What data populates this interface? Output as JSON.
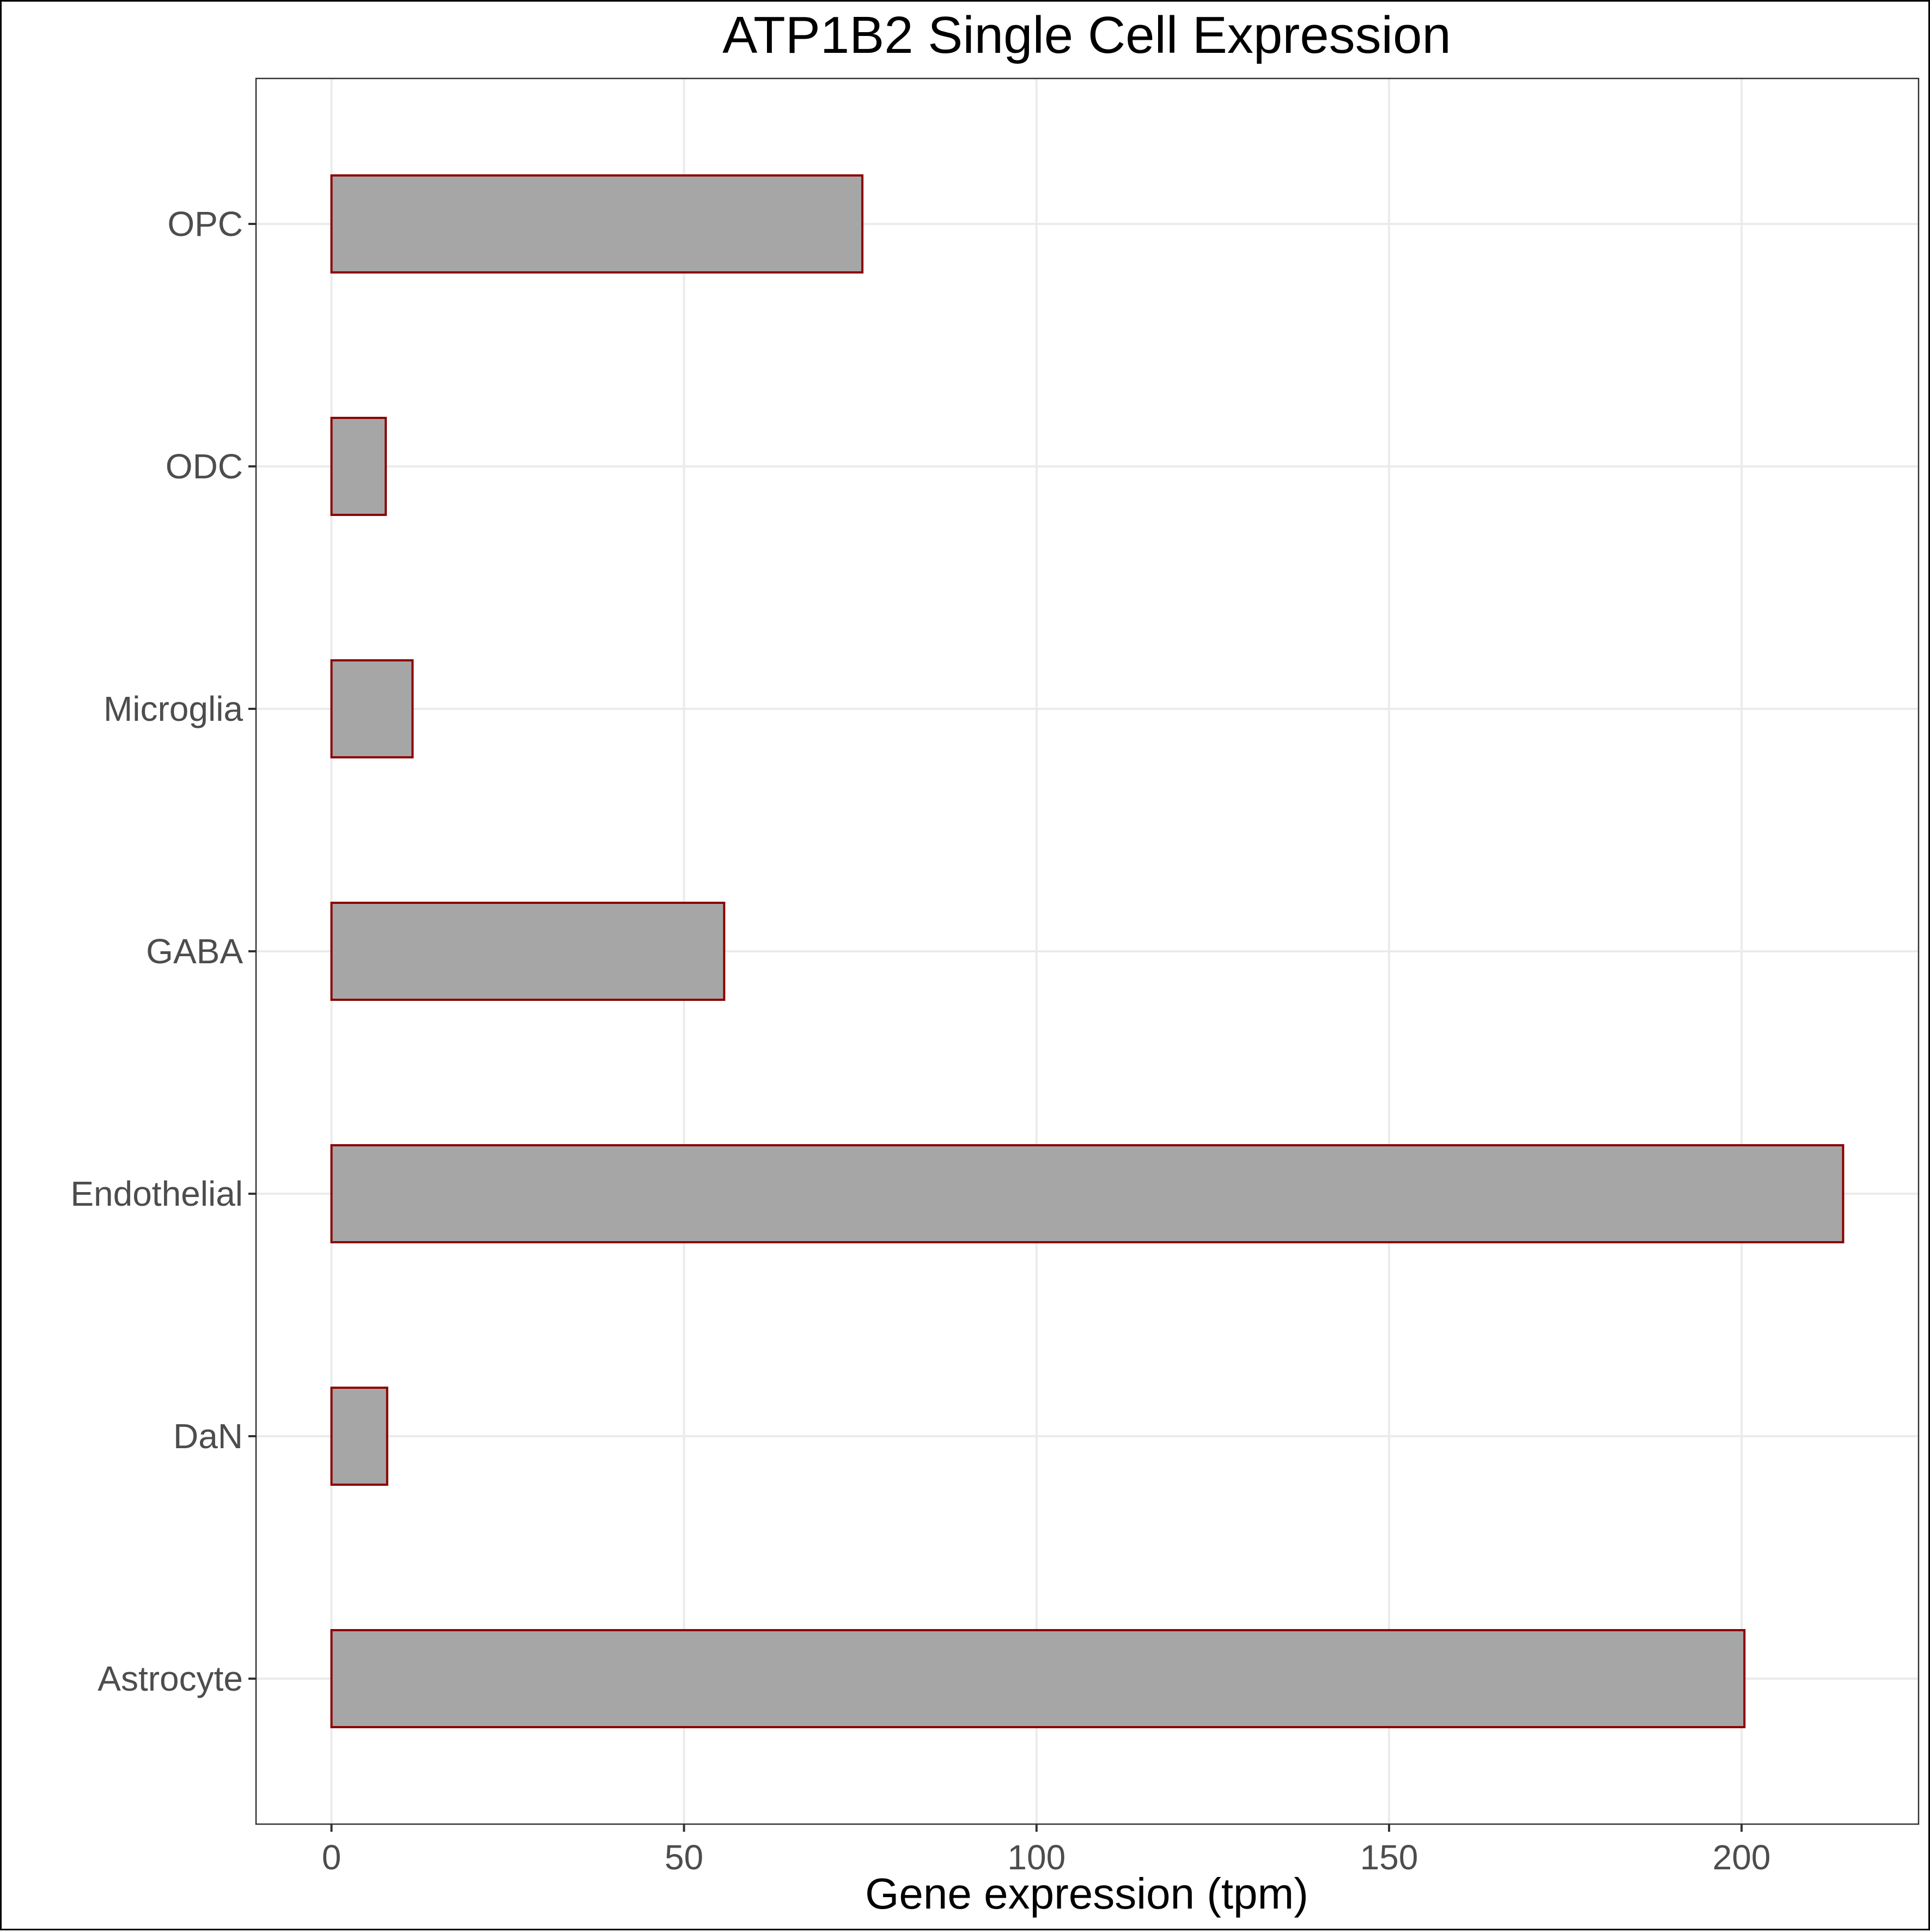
{
  "chart_data": {
    "type": "bar",
    "orientation": "horizontal",
    "title": "ATP1B2 Single Cell Expression",
    "xlabel": "Gene expression (tpm)",
    "ylabel": "",
    "categories": [
      "OPC",
      "ODC",
      "Microglia",
      "GABA",
      "Endothelial",
      "DaN",
      "Astrocyte"
    ],
    "values": [
      75.3,
      7.7,
      11.5,
      55.7,
      214.4,
      7.9,
      200.4
    ],
    "xlim": [
      -10.7,
      225.1
    ],
    "xticks": [
      0,
      50,
      100,
      150,
      200
    ],
    "grid": true,
    "legend": "none",
    "colors": {
      "bar_fill": "#a6a6a6",
      "bar_stroke": "#8b0000",
      "grid": "#ebebeb",
      "tick_label": "#4d4d4d"
    }
  }
}
